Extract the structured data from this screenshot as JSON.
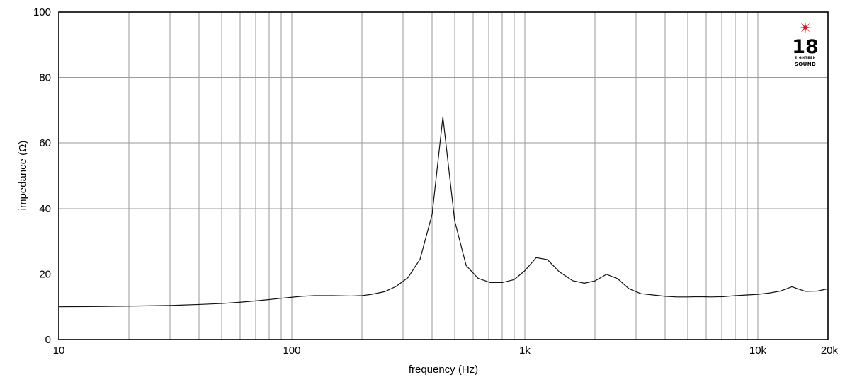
{
  "chart_data": {
    "type": "line",
    "title": "",
    "xlabel": "frequency (Hz)",
    "ylabel": "impedance (Ω)",
    "xscale": "log",
    "xlim": [
      10,
      20000
    ],
    "ylim": [
      0,
      100
    ],
    "grid": true,
    "x_ticks": [
      {
        "value": 10,
        "label": "10"
      },
      {
        "value": 100,
        "label": "100"
      },
      {
        "value": 1000,
        "label": "1k"
      },
      {
        "value": 10000,
        "label": "10k"
      },
      {
        "value": 20000,
        "label": "20k"
      }
    ],
    "y_ticks": [
      {
        "value": 0,
        "label": "0"
      },
      {
        "value": 20,
        "label": "20"
      },
      {
        "value": 40,
        "label": "40"
      },
      {
        "value": 60,
        "label": "60"
      },
      {
        "value": 80,
        "label": "80"
      },
      {
        "value": 100,
        "label": "100"
      }
    ],
    "series": [
      {
        "color": "#111111",
        "x": [
          10,
          15,
          20,
          30,
          40,
          50,
          60,
          70,
          80,
          90,
          100,
          110,
          125,
          150,
          180,
          200,
          220,
          250,
          280,
          315,
          355,
          400,
          445,
          500,
          560,
          630,
          710,
          800,
          900,
          1000,
          1120,
          1250,
          1400,
          1600,
          1800,
          2000,
          2240,
          2500,
          2800,
          3150,
          3550,
          4000,
          4500,
          5000,
          5600,
          6300,
          7100,
          8000,
          9000,
          10000,
          11200,
          12500,
          14000,
          16000,
          18000,
          20000
        ],
        "y": [
          10.0,
          10.1,
          10.2,
          10.4,
          10.7,
          11.0,
          11.4,
          11.8,
          12.2,
          12.6,
          12.9,
          13.2,
          13.4,
          13.4,
          13.3,
          13.4,
          13.8,
          14.6,
          16.2,
          18.9,
          24.5,
          38.2,
          68.0,
          36.2,
          22.6,
          18.7,
          17.4,
          17.4,
          18.3,
          21.0,
          25.0,
          24.4,
          20.8,
          18.0,
          17.2,
          17.9,
          19.9,
          18.6,
          15.5,
          14.0,
          13.6,
          13.2,
          13.0,
          13.0,
          13.1,
          13.0,
          13.1,
          13.4,
          13.6,
          13.8,
          14.2,
          14.8,
          16.1,
          14.7,
          14.8,
          15.5
        ]
      }
    ]
  },
  "logo": {
    "number": "18",
    "tagline": "EIGHTEEN",
    "word": "SOUND",
    "star_color": "#e0141e"
  }
}
